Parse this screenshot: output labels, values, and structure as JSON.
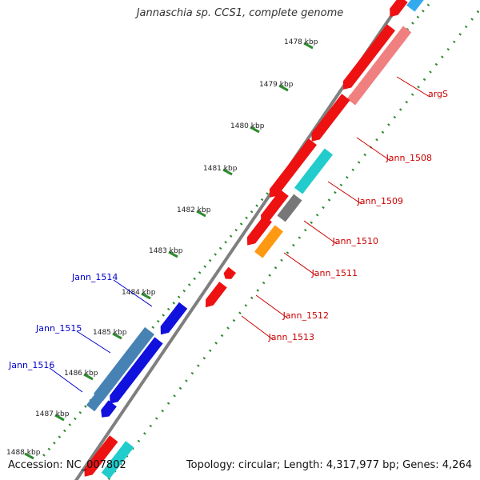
{
  "title": "Jannaschia sp. CCS1, complete genome",
  "footer": {
    "accession": "Accession: NC_007802",
    "topology": "Topology: circular; Length: 4,317,977 bp; Genes: 4,264"
  },
  "colors": {
    "backbone": "#7f7f7f",
    "tick_dots": "#2e8b2e",
    "forward_label": "#cc0000",
    "reverse_label": "#0000cc"
  },
  "scale_labels": [
    "1478 kbp",
    "1479 kbp",
    "1480 kbp",
    "1481 kbp",
    "1482 kbp",
    "1483 kbp",
    "1484 kbp",
    "1485 kbp",
    "1486 kbp",
    "1487 kbp",
    "1488 kbp"
  ],
  "gene_labels": [
    {
      "id": "argS",
      "strand": "forward"
    },
    {
      "id": "Jann_1508",
      "strand": "forward"
    },
    {
      "id": "Jann_1509",
      "strand": "forward"
    },
    {
      "id": "Jann_1510",
      "strand": "forward"
    },
    {
      "id": "Jann_1511",
      "strand": "forward"
    },
    {
      "id": "Jann_1512",
      "strand": "forward"
    },
    {
      "id": "Jann_1513",
      "strand": "forward"
    },
    {
      "id": "Jann_1514",
      "strand": "reverse"
    },
    {
      "id": "Jann_1515",
      "strand": "reverse"
    },
    {
      "id": "Jann_1516",
      "strand": "reverse"
    }
  ]
}
